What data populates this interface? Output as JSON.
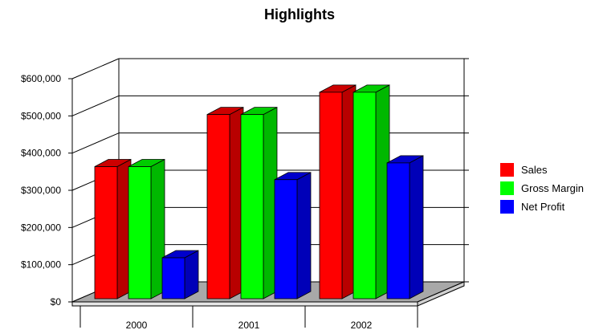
{
  "chart_data": {
    "type": "bar",
    "title": "Highlights",
    "xlabel": "",
    "ylabel": "",
    "categories": [
      "2000",
      "2001",
      "2002"
    ],
    "series": [
      {
        "name": "Sales",
        "color": "#ff0000",
        "values": [
          355000,
          495000,
          555000
        ]
      },
      {
        "name": "Gross Margin",
        "color": "#00ff00",
        "values": [
          355000,
          495000,
          555000
        ]
      },
      {
        "name": "Net Profit",
        "color": "#0000ff",
        "values": [
          110000,
          320000,
          365000
        ]
      }
    ],
    "ylim": [
      0,
      600000
    ],
    "yticks": [
      0,
      100000,
      200000,
      300000,
      400000,
      500000,
      600000
    ],
    "ytick_labels": [
      "$0",
      "$100,000",
      "$200,000",
      "$300,000",
      "$400,000",
      "$500,000",
      "$600,000"
    ],
    "grid": true,
    "style": "3d",
    "legend_position": "right"
  }
}
